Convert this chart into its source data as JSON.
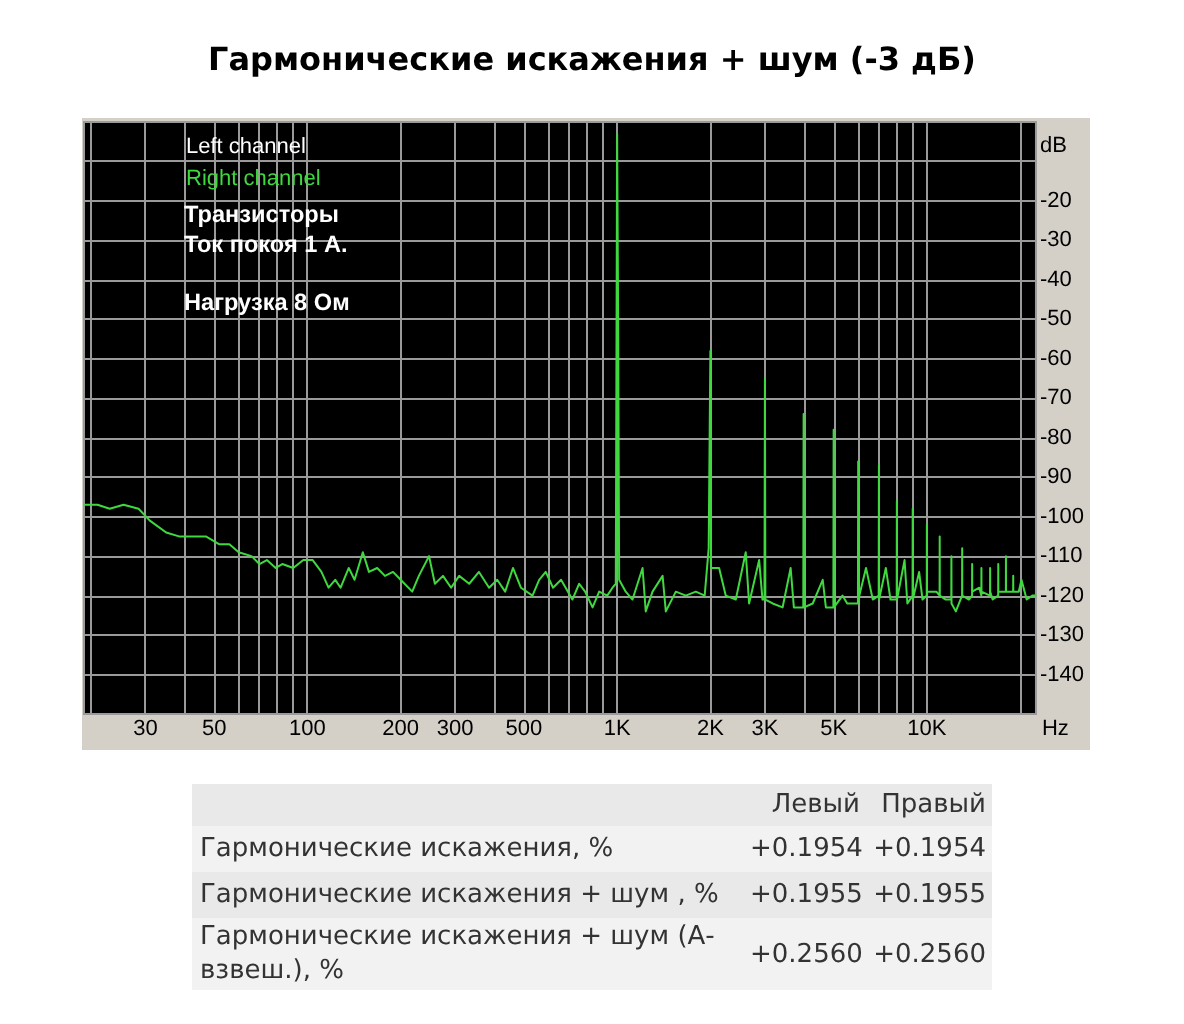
{
  "chart_data": [
    {
      "type": "line",
      "title": "Гармонические искажения + шум (-3 дБ)",
      "xlabel": "Hz",
      "ylabel": "dB",
      "log": "x",
      "grid": true,
      "legend": "top left",
      "marker": "none",
      "xlim": [
        19,
        22500
      ],
      "ylim": [
        -150,
        0
      ],
      "xticks": [
        {
          "value": 20,
          "label": null
        },
        30,
        {
          "value": 40,
          "label": null
        },
        50,
        {
          "value": 60,
          "label": null
        },
        {
          "value": 70,
          "label": null
        },
        {
          "value": 80,
          "label": null
        },
        {
          "value": 90,
          "label": null
        },
        100,
        200,
        300,
        {
          "value": 400,
          "label": null
        },
        500,
        {
          "value": 600,
          "label": null
        },
        {
          "value": 700,
          "label": null
        },
        {
          "value": 800,
          "label": null
        },
        {
          "value": 900,
          "label": null
        },
        {
          "value": 1000,
          "label": "1K"
        },
        {
          "value": 2000,
          "label": "2K"
        },
        {
          "value": 3000,
          "label": "3K"
        },
        {
          "value": 4000,
          "label": null
        },
        {
          "value": 5000,
          "label": "5K"
        },
        {
          "value": 6000,
          "label": null
        },
        {
          "value": 7000,
          "label": null
        },
        {
          "value": 8000,
          "label": null
        },
        {
          "value": 9000,
          "label": null
        },
        {
          "value": 10000,
          "label": "10K"
        },
        {
          "value": 20000,
          "label": null
        }
      ],
      "yticks": [
        {
          "value": -10,
          "label": null
        },
        -20,
        -30,
        -40,
        -50,
        -60,
        -70,
        -80,
        -90,
        -100,
        -110,
        -120,
        -130,
        -140
      ],
      "annotations": [
        "Транзисторы",
        "Ток покоя 1 А.",
        "Нагрузка 8 Ом"
      ],
      "x": [
        19,
        21,
        23,
        25.5,
        28.5,
        31,
        35,
        38.5,
        43,
        47,
        52,
        56,
        60,
        66,
        70,
        74,
        79,
        83,
        90,
        97,
        104,
        111,
        117,
        123,
        128,
        136,
        142,
        151,
        158,
        168,
        178,
        189,
        200,
        218,
        229,
        247,
        258,
        274,
        291,
        309,
        333,
        358,
        386,
        410,
        435,
        461,
        489,
        533,
        560,
        588,
        621,
        659,
        717,
        754,
        788,
        833,
        875,
        929,
        966,
        990,
        1000,
        1008,
        1015,
        1066,
        1121,
        1208,
        1237,
        1301,
        1402,
        1436,
        1547,
        1666,
        1795,
        1917,
        1975,
        2000,
        2010,
        2134,
        2242,
        2416,
        2601,
        2667,
        2874,
        2946,
        2990,
        3000,
        3010,
        3177,
        3421,
        3632,
        3720,
        3990,
        4000,
        4010,
        4280,
        4610,
        4720,
        4990,
        5000,
        5010,
        5340,
        5530,
        5990,
        6000,
        6010,
        6360,
        6690,
        6990,
        7000,
        7010,
        7370,
        7630,
        7990,
        8000,
        8010,
        8470,
        8650,
        8990,
        9000,
        9010,
        9440,
        9680,
        9990,
        10000,
        10010,
        10730,
        10990,
        11000,
        11010,
        11500,
        11990,
        12000,
        12010,
        12400,
        12990,
        13000,
        13010,
        13670,
        13990,
        14000,
        14010,
        14770,
        14990,
        15000,
        15010,
        15990,
        16000,
        16010,
        16300,
        16990,
        17000,
        17010,
        17990,
        18000,
        18010,
        18990,
        19000,
        19010,
        19800,
        20200,
        21000,
        21900,
        22500
      ],
      "series": [
        {
          "name": "Left channel",
          "color": "#ffffff",
          "values": [
            null,
            null,
            null,
            null,
            null,
            null,
            null,
            null,
            null,
            null,
            null,
            null,
            null,
            null,
            null,
            null,
            null,
            null,
            null,
            null,
            null,
            null,
            null,
            null,
            null,
            null,
            null,
            null,
            null,
            null,
            null,
            null,
            null,
            null,
            null,
            null,
            null,
            null,
            null,
            null,
            null,
            null,
            null,
            null,
            null,
            null,
            null,
            null,
            null,
            null,
            null,
            null,
            null,
            null,
            null,
            null,
            null,
            null,
            null,
            null,
            null,
            null,
            null,
            null,
            null,
            null,
            null,
            null,
            null,
            null,
            null,
            null,
            null,
            null,
            null,
            null,
            null,
            null,
            null,
            null,
            null,
            null,
            null,
            null,
            null,
            null,
            null,
            null,
            null,
            null,
            null,
            null,
            null,
            null,
            null,
            null,
            null,
            null,
            null,
            null,
            null,
            null,
            null,
            null,
            null,
            null,
            null,
            null,
            null,
            null,
            null,
            null,
            null,
            null,
            null,
            null,
            null,
            null,
            null,
            null,
            null,
            null,
            null,
            null,
            null,
            null,
            null,
            null,
            null,
            null,
            null,
            null,
            null,
            null,
            null,
            null,
            null,
            null,
            null,
            null,
            null,
            null,
            null,
            null,
            null,
            null,
            null,
            null,
            null,
            null,
            null,
            null,
            null,
            null,
            null,
            null,
            null,
            null,
            null,
            null,
            null,
            null,
            null
          ]
        },
        {
          "name": "Right channel",
          "color": "#3fd83f",
          "values": [
            -97,
            -97,
            -98,
            -97,
            -98,
            -101,
            -104,
            -105,
            -105,
            -105,
            -107,
            -107,
            -109,
            -110,
            -112,
            -111,
            -113,
            -112,
            -113,
            -111,
            -111,
            -114,
            -118,
            -116,
            -118,
            -113,
            -116,
            -109,
            -114,
            -113,
            -115,
            -114,
            -116,
            -119,
            -115,
            -110,
            -117,
            -115,
            -118,
            -115,
            -117,
            -114,
            -118,
            -116,
            -119,
            -113,
            -118,
            -120,
            -116,
            -114,
            -118,
            -116,
            -121,
            -117,
            -119,
            -123,
            -119,
            -120,
            -118,
            -117,
            -3,
            -54,
            -116,
            -119,
            -121,
            -113,
            -124,
            -119,
            -115,
            -124,
            -119,
            -120,
            -119,
            -120,
            -108,
            -58,
            -113,
            -113,
            -120,
            -121,
            -109,
            -122,
            -111,
            -121,
            -121,
            -65,
            -121,
            -122,
            -123,
            -113,
            -123,
            -123,
            -74,
            -123,
            -122,
            -116,
            -123,
            -123,
            -78,
            -123,
            -120,
            -122,
            -122,
            -86,
            -121,
            -113,
            -121,
            -120,
            -87,
            -121,
            -113,
            -121,
            -121,
            -96,
            -121,
            -111,
            -122,
            -120,
            -98,
            -121,
            -114,
            -121,
            -120,
            -102,
            -119,
            -119,
            -120,
            -105,
            -120,
            -121,
            -121,
            -110,
            -122,
            -124,
            -120,
            -108,
            -120,
            -121,
            -120,
            -112,
            -119,
            -118,
            -120,
            -113,
            -119,
            -120,
            -113,
            -119,
            -121,
            -120,
            -112,
            -119,
            -119,
            -110,
            -119,
            -119,
            -115,
            -119,
            -119,
            -116,
            -121,
            -120,
            -120
          ]
        }
      ]
    },
    {
      "type": "other",
      "categories": [
        "Левый",
        "Правый"
      ],
      "y_categories": [
        "Гармонические искажения, %",
        "Гармонические искажения + шум , %",
        "Гармонические искажения + шум (А-взвеш.), %"
      ],
      "annotations": [
        "+0.1954",
        "+0.1954",
        "+0.1955",
        "+0.1955",
        "+0.2560",
        "+0.2560"
      ]
    }
  ]
}
